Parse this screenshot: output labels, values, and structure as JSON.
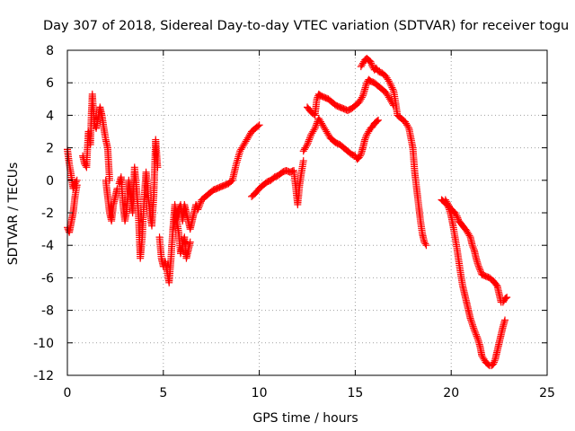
{
  "chart_data": {
    "type": "scatter",
    "title": "Day 307 of 2018, Sidereal Day-to-day VTEC variation (SDTVAR) for receiver togu",
    "xlabel": "GPS time / hours",
    "ylabel": "SDTVAR / TECUs",
    "xlim": [
      0,
      25
    ],
    "ylim": [
      -12,
      8
    ],
    "xticks": [
      "0",
      "5",
      "10",
      "15",
      "20",
      "25"
    ],
    "yticks": [
      "-12",
      "-10",
      "-8",
      "-6",
      "-4",
      "-2",
      "0",
      "2",
      "4",
      "6",
      "8"
    ],
    "grid": true,
    "marker": "plus",
    "color": "#ff0000",
    "series": [
      {
        "x": [
          0.0,
          0.1,
          0.2,
          0.3,
          0.4,
          0.5
        ],
        "y": [
          1.9,
          1.0,
          0.3,
          -0.5,
          -0.2,
          0.0
        ]
      },
      {
        "x": [
          0.0,
          0.1,
          0.2,
          0.3,
          0.4,
          0.5
        ],
        "y": [
          -2.9,
          -3.2,
          -2.6,
          -2.0,
          -1.0,
          -0.3
        ]
      },
      {
        "x": [
          0.8,
          0.9,
          1.0,
          1.05,
          1.1,
          1.2,
          1.25,
          1.3,
          1.4,
          1.5,
          1.6,
          1.7,
          1.8,
          1.9,
          2.0,
          2.1,
          2.2
        ],
        "y": [
          1.5,
          1.0,
          0.8,
          2.0,
          3.0,
          2.2,
          4.0,
          5.3,
          3.5,
          3.2,
          3.8,
          4.5,
          4.0,
          3.2,
          2.5,
          2.0,
          0.0
        ]
      },
      {
        "x": [
          2.0,
          2.1,
          2.2,
          2.3,
          2.4,
          2.5,
          2.6
        ],
        "y": [
          0.0,
          -1.0,
          -2.0,
          -2.5,
          -1.5,
          -1.0,
          -0.5
        ]
      },
      {
        "x": [
          2.7,
          2.8,
          2.9,
          3.0,
          3.1,
          3.2,
          3.3,
          3.4,
          3.5,
          3.6,
          3.7,
          3.8,
          3.9,
          4.0,
          4.1,
          4.2,
          4.3,
          4.4,
          4.5,
          4.6,
          4.7
        ],
        "y": [
          -0.2,
          0.2,
          -1.5,
          -2.5,
          -1.8,
          0.0,
          -1.0,
          -2.0,
          0.8,
          -0.5,
          -2.0,
          -4.8,
          -3.5,
          -1.2,
          0.5,
          -0.8,
          -2.0,
          -2.8,
          -1.0,
          2.5,
          0.8
        ]
      },
      {
        "x": [
          4.8,
          4.9,
          5.0,
          5.1,
          5.2,
          5.3,
          5.4,
          5.5,
          5.6,
          5.7,
          5.8,
          5.9,
          6.0,
          6.1,
          6.2,
          6.3,
          6.4
        ],
        "y": [
          -3.5,
          -4.8,
          -5.3,
          -5.0,
          -5.6,
          -6.3,
          -4.8,
          -3.0,
          -1.5,
          -2.5,
          -3.2,
          -4.5,
          -4.0,
          -3.5,
          -4.8,
          -4.3,
          -3.8
        ]
      },
      {
        "x": [
          5.5,
          5.7,
          5.9,
          6.0,
          6.1,
          6.2,
          6.3,
          6.4,
          6.5,
          6.6,
          6.7,
          6.8,
          6.9,
          7.0,
          7.2,
          7.4,
          7.6,
          7.8,
          8.0,
          8.2,
          8.4,
          8.6,
          8.8,
          9.0,
          9.2,
          9.4,
          9.5,
          9.6,
          9.8,
          10.0
        ],
        "y": [
          -3.0,
          -2.0,
          -1.5,
          -2.5,
          -1.5,
          -2.0,
          -2.5,
          -3.0,
          -2.5,
          -2.0,
          -1.5,
          -1.8,
          -1.5,
          -1.2,
          -1.0,
          -0.8,
          -0.6,
          -0.5,
          -0.4,
          -0.3,
          -0.2,
          0.0,
          1.0,
          1.8,
          2.2,
          2.6,
          2.8,
          3.0,
          3.2,
          3.4
        ]
      },
      {
        "x": [
          9.6,
          9.8,
          10.0,
          10.2,
          10.4,
          10.6,
          10.8,
          11.0,
          11.2,
          11.4,
          11.6,
          11.8,
          12.0,
          12.1,
          12.2,
          12.3
        ],
        "y": [
          -1.0,
          -0.8,
          -0.5,
          -0.3,
          -0.1,
          0.0,
          0.2,
          0.3,
          0.5,
          0.6,
          0.5,
          0.6,
          -1.5,
          -0.3,
          0.5,
          1.2
        ]
      },
      {
        "x": [
          12.3,
          12.5,
          12.7,
          12.9,
          13.0,
          13.1,
          13.2,
          13.3,
          13.4,
          13.5,
          13.6,
          13.7,
          13.8,
          13.9,
          14.0,
          14.2,
          14.4,
          14.6,
          14.8,
          15.0,
          15.1,
          15.2,
          15.3,
          15.4,
          15.5,
          15.6,
          15.7,
          15.8,
          15.9,
          16.0,
          16.1,
          16.2
        ],
        "y": [
          1.8,
          2.2,
          2.8,
          3.2,
          3.5,
          3.8,
          3.6,
          3.4,
          3.2,
          3.0,
          2.8,
          2.6,
          2.5,
          2.4,
          2.3,
          2.2,
          2.0,
          1.8,
          1.6,
          1.5,
          1.3,
          1.4,
          1.6,
          2.0,
          2.5,
          2.8,
          3.0,
          3.2,
          3.3,
          3.5,
          3.6,
          3.7
        ]
      },
      {
        "x": [
          12.5,
          12.7,
          12.9,
          13.0,
          13.1,
          13.2,
          13.4,
          13.6,
          13.8,
          14.0,
          14.2,
          14.4,
          14.6,
          14.8,
          15.0,
          15.2,
          15.4,
          15.5,
          15.6,
          15.7,
          15.8,
          16.0,
          16.2,
          16.4,
          16.6,
          16.8,
          17.0
        ],
        "y": [
          4.5,
          4.2,
          4.0,
          5.0,
          5.3,
          5.2,
          5.1,
          5.0,
          4.8,
          4.6,
          4.5,
          4.4,
          4.3,
          4.4,
          4.6,
          4.8,
          5.2,
          5.6,
          6.0,
          6.2,
          6.1,
          6.0,
          5.8,
          5.6,
          5.4,
          5.0,
          4.6
        ]
      },
      {
        "x": [
          15.3,
          15.4,
          15.5,
          15.6,
          15.7,
          15.8,
          15.9,
          16.0,
          16.1,
          16.2,
          16.4,
          16.6,
          16.8,
          17.0,
          17.1,
          17.2,
          17.4,
          17.6,
          17.8,
          18.0,
          18.1,
          18.2,
          18.3,
          18.4,
          18.5,
          18.6,
          18.7
        ],
        "y": [
          7.0,
          7.2,
          7.4,
          7.5,
          7.4,
          7.3,
          7.0,
          6.8,
          6.9,
          6.7,
          6.6,
          6.4,
          6.0,
          5.5,
          4.8,
          4.0,
          3.8,
          3.6,
          3.2,
          2.0,
          0.5,
          -0.5,
          -1.5,
          -2.5,
          -3.3,
          -3.8,
          -4.0
        ]
      },
      {
        "x": [
          19.5,
          19.6,
          19.7,
          19.8,
          19.9,
          20.0,
          20.1,
          20.2,
          20.3,
          20.4,
          20.5,
          20.6,
          20.7,
          20.8,
          20.9,
          21.0,
          21.2,
          21.4,
          21.5,
          21.6,
          21.7,
          21.8,
          21.9,
          22.0,
          22.1,
          22.2,
          22.3,
          22.4,
          22.5,
          22.6,
          22.7,
          22.8
        ],
        "y": [
          -1.2,
          -1.3,
          -1.4,
          -1.5,
          -1.8,
          -2.2,
          -2.8,
          -3.5,
          -4.2,
          -5.0,
          -5.8,
          -6.5,
          -7.0,
          -7.5,
          -8.0,
          -8.5,
          -9.2,
          -9.8,
          -10.2,
          -10.8,
          -11.0,
          -11.2,
          -11.3,
          -11.4,
          -11.4,
          -11.3,
          -11.0,
          -10.5,
          -10.0,
          -9.5,
          -9.0,
          -8.6
        ]
      },
      {
        "x": [
          19.7,
          19.9,
          20.0,
          20.1,
          20.2,
          20.3,
          20.4,
          20.6,
          20.8,
          21.0,
          21.1,
          21.2,
          21.3,
          21.4,
          21.5,
          21.6,
          21.8,
          22.0,
          22.2,
          22.4,
          22.5,
          22.6,
          22.7,
          22.8,
          22.9
        ],
        "y": [
          -1.2,
          -1.6,
          -1.8,
          -1.9,
          -2.0,
          -2.2,
          -2.5,
          -2.8,
          -3.1,
          -3.5,
          -4.0,
          -4.3,
          -4.8,
          -5.2,
          -5.5,
          -5.8,
          -5.9,
          -6.0,
          -6.2,
          -6.5,
          -7.0,
          -7.5,
          -7.5,
          -7.3,
          -7.2
        ]
      }
    ]
  }
}
